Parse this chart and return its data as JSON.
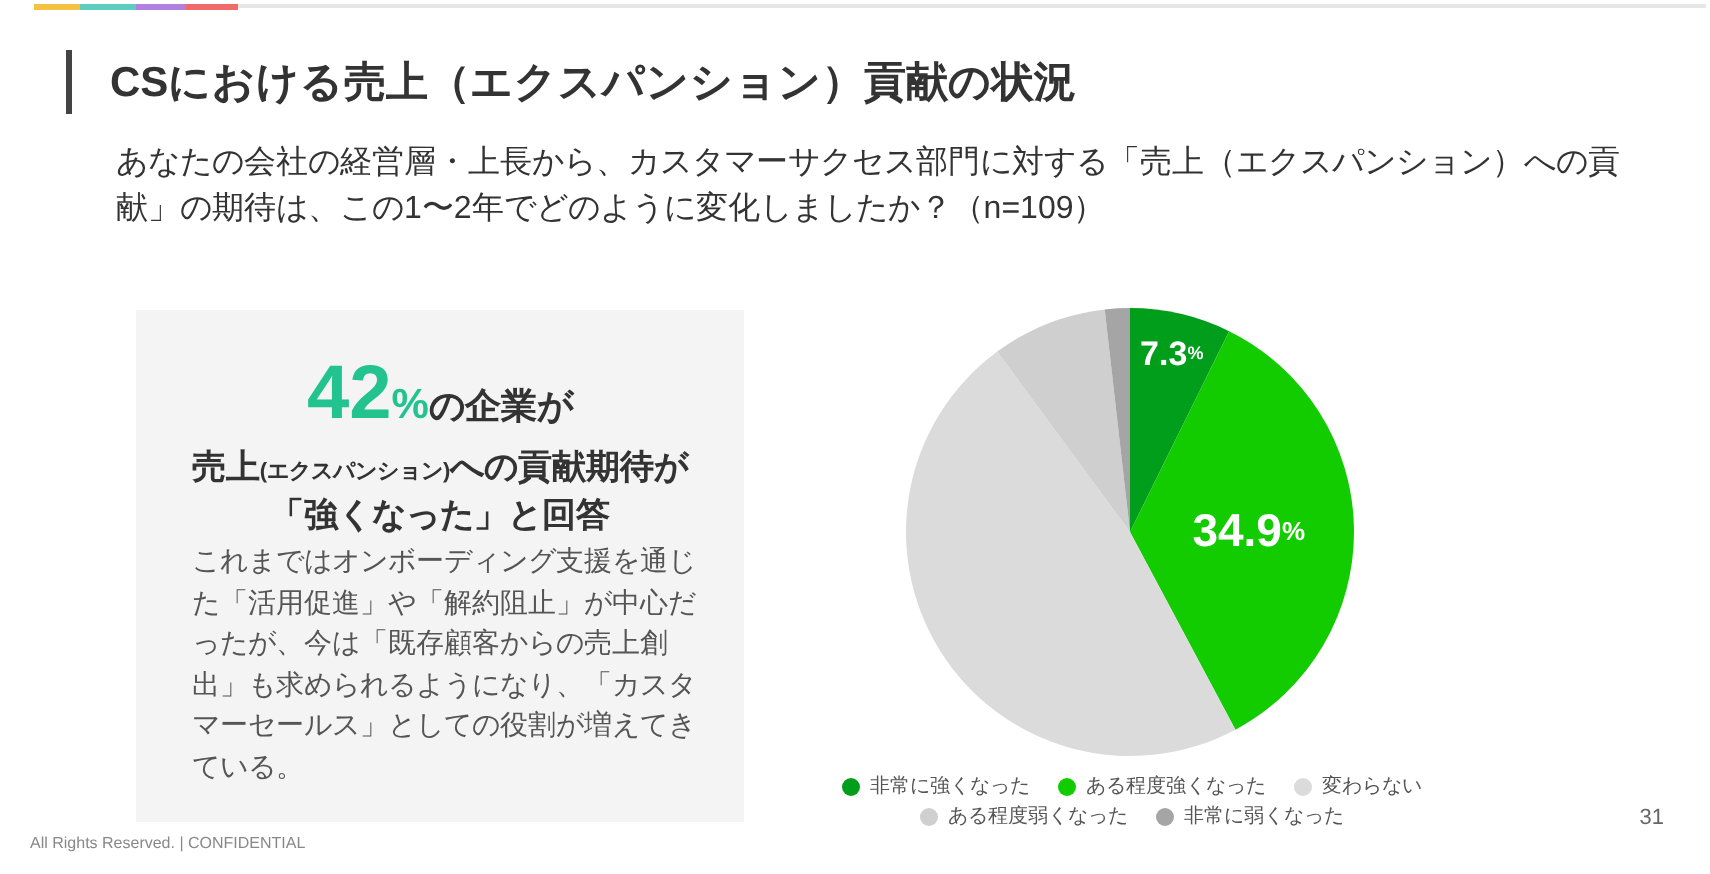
{
  "chart_data": [
    {
      "type": "pie",
      "title": "CSにおける売上（エクスパンション）貢献の状況",
      "subtitle": "あなたの会社の経営層・上長から、カスタマーサクセス部門に対する「売上（エクスパンション）への貢献」の期待は、この1〜2年でどのように変化しましたか？（n=109）",
      "categories": [
        "非常に強くなった",
        "ある程度強くなった",
        "変わらない",
        "ある程度弱くなった",
        "非常に弱くなった"
      ],
      "values": [
        7.3,
        34.9,
        47.7,
        8.3,
        1.8
      ],
      "colors": [
        "#009e1a",
        "#12cc00",
        "#dbdbdb",
        "#cfcfcf",
        "#a5a5a5"
      ],
      "value_labels": [
        "7.3%",
        "34.9%",
        null,
        null,
        null
      ],
      "legend": "bottom",
      "annotations": [
        "All Rights Reserved. | CONFIDENTIAL",
        "31"
      ]
    },
    {
      "type": "other",
      "title": "42%の企業が",
      "subtitle": "売上(エクスパンション)への貢献期待が「強くなった」と回答",
      "annotations": [
        "これまではオンボーディング支援を通じた「活用促進」や「解約阻止」が中心だったが、今は「既存顧客からの売上創出」も求められるようになり、「カスタマーセールス」としての役割が増えてきている。"
      ]
    }
  ]
}
